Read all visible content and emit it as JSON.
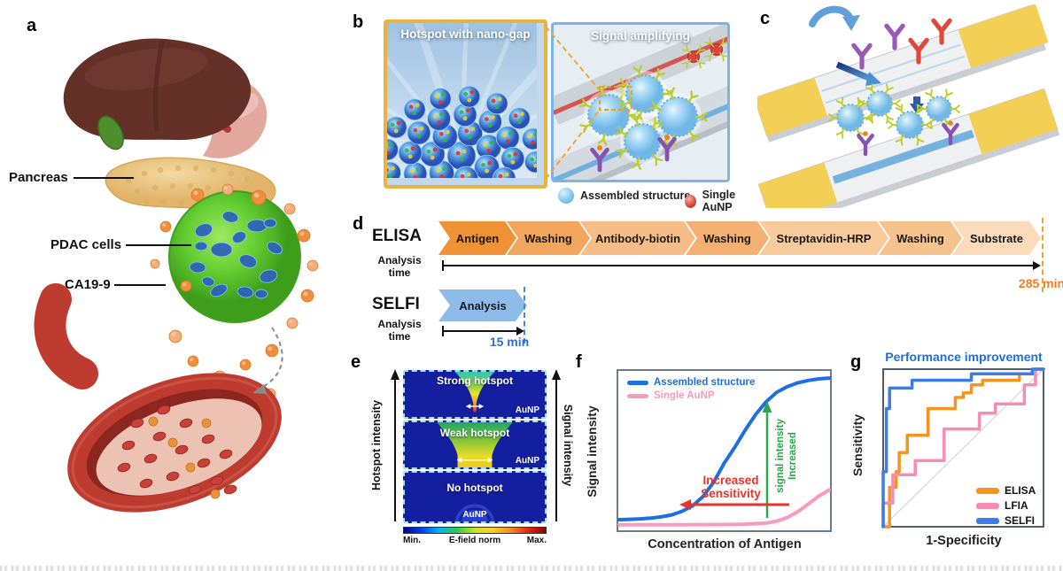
{
  "figure": {
    "panels": {
      "a": "a",
      "b": "b",
      "c": "c",
      "d": "d",
      "e": "e",
      "f": "f",
      "g": "g"
    }
  },
  "panel_a": {
    "labels": {
      "pancreas": "Pancreas",
      "pdac": "PDAC cells",
      "ca199": "CA19-9"
    }
  },
  "panel_b": {
    "hotspot_title": "Hotspot with nano-gap",
    "signal_title": "Signal amplifying",
    "legend": {
      "assembled": {
        "label": "Assembled structure",
        "color": "#7FC4EA"
      },
      "single": {
        "label": "Single AuNP",
        "color": "#D9453C"
      }
    }
  },
  "panel_d": {
    "elisa": {
      "name": "ELISA",
      "axis_line1": "Analysis",
      "axis_line2": "time",
      "steps": [
        "Antigen",
        "Washing",
        "Antibody-biotin",
        "Washing",
        "Streptavidin-HRP",
        "Washing",
        "Substrate"
      ],
      "step_colors": [
        "#EF9236",
        "#F2A55C",
        "#F6BD88",
        "#F4B072",
        "#F8CB9D",
        "#F6C28D",
        "#FADCBD"
      ],
      "total_time": "285 min",
      "time_color": "#F07E1E"
    },
    "selfi": {
      "name": "SELFI",
      "axis_line1": "Analysis",
      "axis_line2": "time",
      "steps": [
        "Analysis"
      ],
      "step_colors": [
        "#8FBBEB"
      ],
      "total_time": "15 min",
      "time_color": "#2E6FD0"
    }
  },
  "panel_e": {
    "zones": [
      {
        "label": "Strong hotspot",
        "particle": "AuNP"
      },
      {
        "label": "Weak hotspot",
        "particle": "AuNP"
      },
      {
        "label": "No hotspot",
        "particle": "AuNP"
      }
    ],
    "left_axis": "Hotspot intensity",
    "right_axis": "Signal intensity",
    "colorbar": {
      "min_label": "Min.",
      "title": "E-field norm",
      "max_label": "Max.",
      "stops": [
        "#00028C",
        "#0040F0",
        "#00B8F0",
        "#28D048",
        "#C8E428",
        "#F7D22A",
        "#F59020",
        "#E82412",
        "#8E0000"
      ]
    }
  },
  "chart_data": [
    {
      "id": "panel-f",
      "type": "line",
      "xlabel": "Concentration of Antigen",
      "ylabel": "Signal intensity",
      "x_range": [
        0,
        1
      ],
      "y_range": [
        0,
        1
      ],
      "grid": false,
      "legend_position": "top-left",
      "series": [
        {
          "name": "Assembled structure",
          "color": "#1B6FE0",
          "width": 4,
          "points": [
            [
              0,
              0.062
            ],
            [
              0.05,
              0.064
            ],
            [
              0.1,
              0.067
            ],
            [
              0.15,
              0.072
            ],
            [
              0.2,
              0.079
            ],
            [
              0.25,
              0.092
            ],
            [
              0.3,
              0.115
            ],
            [
              0.35,
              0.15
            ],
            [
              0.4,
              0.21
            ],
            [
              0.45,
              0.3
            ],
            [
              0.5,
              0.42
            ],
            [
              0.55,
              0.52
            ],
            [
              0.6,
              0.63
            ],
            [
              0.65,
              0.73
            ],
            [
              0.7,
              0.81
            ],
            [
              0.75,
              0.87
            ],
            [
              0.8,
              0.905
            ],
            [
              0.85,
              0.93
            ],
            [
              0.9,
              0.945
            ],
            [
              0.95,
              0.955
            ],
            [
              1,
              0.96
            ]
          ]
        },
        {
          "name": "Single AuNP",
          "color": "#F79BC2",
          "width": 4,
          "points": [
            [
              0,
              0.03
            ],
            [
              0.3,
              0.03
            ],
            [
              0.5,
              0.031
            ],
            [
              0.6,
              0.033
            ],
            [
              0.7,
              0.04
            ],
            [
              0.75,
              0.052
            ],
            [
              0.8,
              0.075
            ],
            [
              0.85,
              0.112
            ],
            [
              0.9,
              0.16
            ],
            [
              0.95,
              0.21
            ],
            [
              1,
              0.25
            ]
          ]
        }
      ],
      "annotations": [
        {
          "id": "sensitivity",
          "line1": "Increased",
          "line2": "Sensitivity",
          "color": "#E8322A",
          "arrow": "left"
        },
        {
          "id": "signal",
          "line1": "Increased",
          "line2": "signal intensity",
          "color": "#2BA84A",
          "arrow": "up"
        }
      ]
    },
    {
      "id": "panel-g",
      "type": "line",
      "title": "Performance improvement",
      "title_color": "#1D6FE0",
      "xlabel": "1-Specificity",
      "ylabel": "Sensitivity",
      "x_range": [
        0,
        1
      ],
      "y_range": [
        0,
        1
      ],
      "diagonal_reference": true,
      "legend_position": "bottom-right",
      "series": [
        {
          "name": "ELISA",
          "color": "#F79420",
          "width": 3.5,
          "points": [
            [
              0,
              0
            ],
            [
              0.04,
              0
            ],
            [
              0.04,
              0.25
            ],
            [
              0.08,
              0.25
            ],
            [
              0.08,
              0.35
            ],
            [
              0.1,
              0.35
            ],
            [
              0.1,
              0.47
            ],
            [
              0.15,
              0.47
            ],
            [
              0.15,
              0.58
            ],
            [
              0.28,
              0.58
            ],
            [
              0.28,
              0.75
            ],
            [
              0.45,
              0.75
            ],
            [
              0.45,
              0.82
            ],
            [
              0.5,
              0.82
            ],
            [
              0.5,
              0.85
            ],
            [
              0.55,
              0.85
            ],
            [
              0.55,
              0.9
            ],
            [
              0.62,
              0.9
            ],
            [
              0.62,
              0.93
            ],
            [
              0.85,
              0.93
            ],
            [
              0.85,
              0.97
            ],
            [
              0.95,
              0.97
            ],
            [
              0.95,
              1
            ],
            [
              1,
              1
            ]
          ]
        },
        {
          "name": "LFIA",
          "color": "#F78CB4",
          "width": 3.5,
          "points": [
            [
              0,
              0
            ],
            [
              0,
              0.15
            ],
            [
              0.06,
              0.15
            ],
            [
              0.06,
              0.33
            ],
            [
              0.2,
              0.33
            ],
            [
              0.2,
              0.42
            ],
            [
              0.38,
              0.42
            ],
            [
              0.38,
              0.62
            ],
            [
              0.6,
              0.62
            ],
            [
              0.6,
              0.72
            ],
            [
              0.7,
              0.72
            ],
            [
              0.7,
              0.78
            ],
            [
              0.88,
              0.78
            ],
            [
              0.88,
              0.9
            ],
            [
              0.95,
              0.9
            ],
            [
              0.95,
              1
            ],
            [
              1,
              1
            ]
          ]
        },
        {
          "name": "SELFI",
          "color": "#3D7BE8",
          "width": 3.5,
          "points": [
            [
              0,
              0
            ],
            [
              0,
              0.35
            ],
            [
              0.02,
              0.35
            ],
            [
              0.02,
              0.75
            ],
            [
              0.04,
              0.75
            ],
            [
              0.04,
              0.88
            ],
            [
              0.18,
              0.88
            ],
            [
              0.18,
              0.93
            ],
            [
              0.55,
              0.93
            ],
            [
              0.55,
              0.97
            ],
            [
              0.93,
              0.97
            ],
            [
              0.93,
              1
            ],
            [
              1,
              1
            ]
          ]
        }
      ]
    }
  ]
}
